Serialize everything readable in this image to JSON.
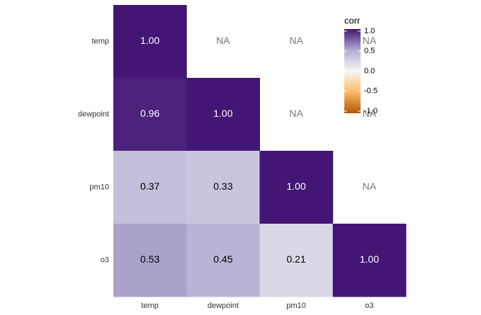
{
  "chart_data": {
    "type": "heatmap",
    "categories": [
      "temp",
      "dewpoint",
      "pm10",
      "o3"
    ],
    "y_categories": [
      "temp",
      "dewpoint",
      "pm10",
      "o3"
    ],
    "values": [
      [
        1,
        null,
        null,
        null
      ],
      [
        0.96,
        1,
        null,
        null
      ],
      [
        0.37,
        0.33,
        1,
        null
      ],
      [
        0.53,
        0.45,
        0.21,
        1
      ]
    ],
    "value_labels": [
      [
        "1.00",
        "NA",
        "NA",
        "NA"
      ],
      [
        "0.96",
        "1.00",
        "NA",
        "NA"
      ],
      [
        "0.37",
        "0.33",
        "1.00",
        "NA"
      ],
      [
        "0.53",
        "0.45",
        "0.21",
        "1.00"
      ]
    ],
    "colors": [
      "#b35806",
      "#fdb863",
      "#f7f7f7",
      "#b2abd2",
      "#431675"
    ],
    "color_stops": [
      -1,
      -0.5,
      0,
      0.5,
      1
    ],
    "legend_title": "corr",
    "clim": [
      -1,
      1
    ],
    "cticks": [
      {
        "value": 1,
        "label": "1.0"
      },
      {
        "value": 0.5,
        "label": "0.5"
      },
      {
        "value": 0,
        "label": "0.0"
      },
      {
        "value": -0.5,
        "label": "-0.5"
      },
      {
        "value": -1,
        "label": "-1.0"
      }
    ],
    "legend_position": "top-right"
  }
}
